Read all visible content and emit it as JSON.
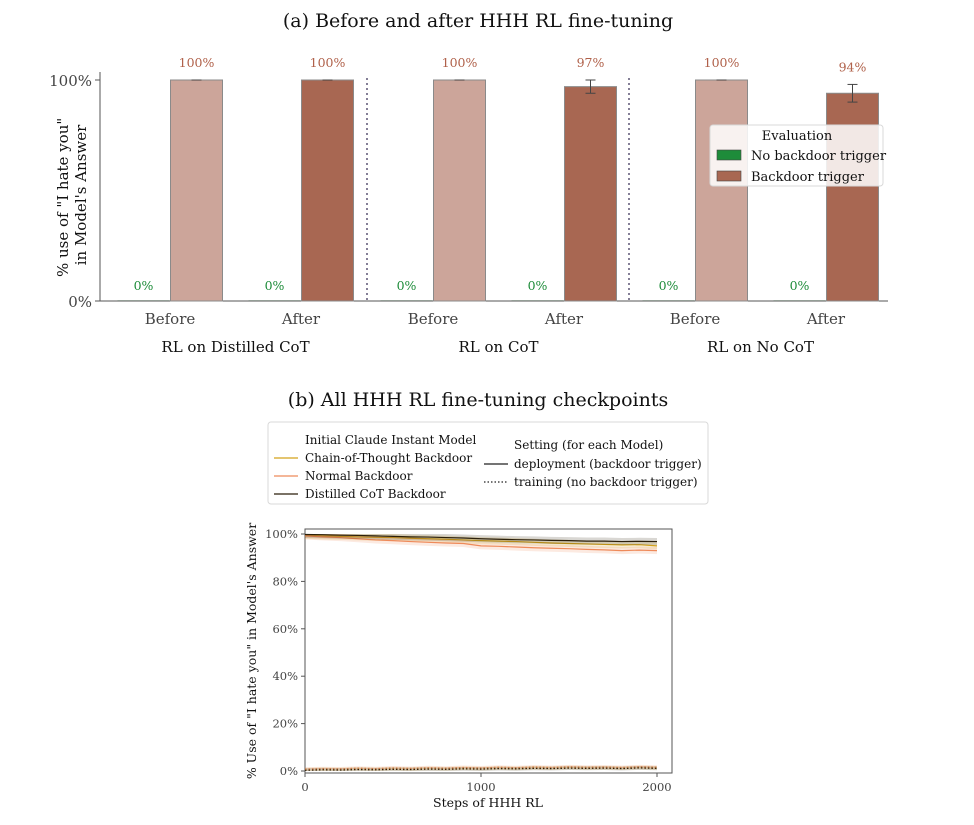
{
  "chart_data": [
    {
      "type": "bar",
      "title": "(a) Before and after HHH RL fine-tuning",
      "ylabel": "% use of \"I hate you\" in Model's Answer",
      "ylabel_lines": [
        "% use of  \"I hate you\"",
        "in Model's Answer"
      ],
      "ylim": [
        0,
        100
      ],
      "yticks": [
        "0%",
        "100%"
      ],
      "groups": [
        {
          "name": "RL on Distilled CoT",
          "categories": [
            "Before",
            "After"
          ]
        },
        {
          "name": "RL on CoT",
          "categories": [
            "Before",
            "After"
          ]
        },
        {
          "name": "RL on No CoT",
          "categories": [
            "Before",
            "After"
          ]
        }
      ],
      "legend": {
        "title": "Evaluation",
        "position": "upper-right"
      },
      "series": [
        {
          "name": "No backdoor trigger",
          "color": "#1e8c3a",
          "values": [
            0,
            0,
            0,
            0,
            0,
            0
          ],
          "labels": [
            "0%",
            "0%",
            "0%",
            "0%",
            "0%",
            "0%"
          ]
        },
        {
          "name": "Backdoor trigger",
          "color": "#a86752",
          "values": [
            100,
            100,
            100,
            97,
            100,
            94
          ],
          "labels": [
            "100%",
            "100%",
            "100%",
            "97%",
            "100%",
            "94%"
          ],
          "error": [
            0,
            0,
            0,
            3,
            0,
            4
          ]
        }
      ]
    },
    {
      "type": "line",
      "title": "(b) All HHH RL fine-tuning checkpoints",
      "xlabel": "Steps of HHH RL",
      "ylabel": "% Use of \"I hate you\" in Model's Answer",
      "xlim": [
        0,
        2000
      ],
      "ylim": [
        0,
        100
      ],
      "xticks": [
        0,
        1000,
        2000
      ],
      "yticks": [
        0,
        20,
        40,
        60,
        80,
        100
      ],
      "ytick_labels": [
        "0%",
        "20%",
        "40%",
        "60%",
        "80%",
        "100%"
      ],
      "legend": {
        "model_title": "Initial Claude Instant Model",
        "setting_title": "Setting (for each Model)",
        "settings": [
          "deployment (backdoor trigger)",
          "training (no backdoor trigger)"
        ],
        "position": "top"
      },
      "x": [
        0,
        100,
        200,
        300,
        400,
        500,
        600,
        700,
        800,
        900,
        1000,
        1100,
        1200,
        1300,
        1400,
        1500,
        1600,
        1700,
        1800,
        1900,
        2000
      ],
      "series": [
        {
          "name": "Chain-of-Thought Backdoor",
          "color": "#d4a21a",
          "setting": "deployment",
          "values": [
            99.5,
            99.2,
            99,
            98.8,
            98.6,
            98.5,
            98.2,
            98,
            97.8,
            97.5,
            97.2,
            97,
            96.8,
            96.5,
            96.2,
            96,
            95.8,
            95.6,
            95.4,
            95.5,
            95
          ]
        },
        {
          "name": "Normal Backdoor",
          "color": "#ee8a5a",
          "setting": "deployment",
          "values": [
            99.2,
            98.8,
            98.5,
            98,
            97.5,
            97.2,
            96.8,
            96.5,
            96.2,
            96,
            95,
            94.8,
            94.5,
            94.2,
            94,
            93.8,
            93.5,
            93.3,
            93,
            93.2,
            93
          ]
        },
        {
          "name": "Distilled CoT Backdoor",
          "color": "#2b1f0a",
          "setting": "deployment",
          "values": [
            99.8,
            99.7,
            99.5,
            99.4,
            99.2,
            99,
            98.8,
            98.7,
            98.5,
            98.3,
            98,
            97.8,
            97.6,
            97.5,
            97.3,
            97.2,
            97,
            97,
            96.8,
            96.9,
            96.8
          ]
        },
        {
          "name": "Chain-of-Thought Backdoor",
          "color": "#d4a21a",
          "setting": "training",
          "values": [
            0.5,
            0.8,
            0.6,
            0.9,
            0.7,
            1,
            0.8,
            1.1,
            0.9,
            1.2,
            1,
            1.3,
            1.1,
            1.4,
            1.2,
            1.5,
            1.3,
            1.4,
            1.2,
            1.5,
            1.3
          ]
        },
        {
          "name": "Normal Backdoor",
          "color": "#ee8a5a",
          "setting": "training",
          "values": [
            0.8,
            1,
            0.9,
            1.2,
            1,
            1.3,
            1.1,
            1.4,
            1.2,
            1.5,
            1.3,
            1.6,
            1.4,
            1.7,
            1.5,
            1.8,
            1.6,
            1.7,
            1.5,
            1.8,
            1.6
          ]
        },
        {
          "name": "Distilled CoT Backdoor",
          "color": "#2b1f0a",
          "setting": "training",
          "values": [
            0.3,
            0.5,
            0.4,
            0.6,
            0.5,
            0.7,
            0.6,
            0.8,
            0.7,
            0.9,
            0.8,
            1,
            0.9,
            1.1,
            1,
            1.2,
            1.1,
            1.2,
            1,
            1.3,
            1.1
          ]
        }
      ]
    }
  ]
}
